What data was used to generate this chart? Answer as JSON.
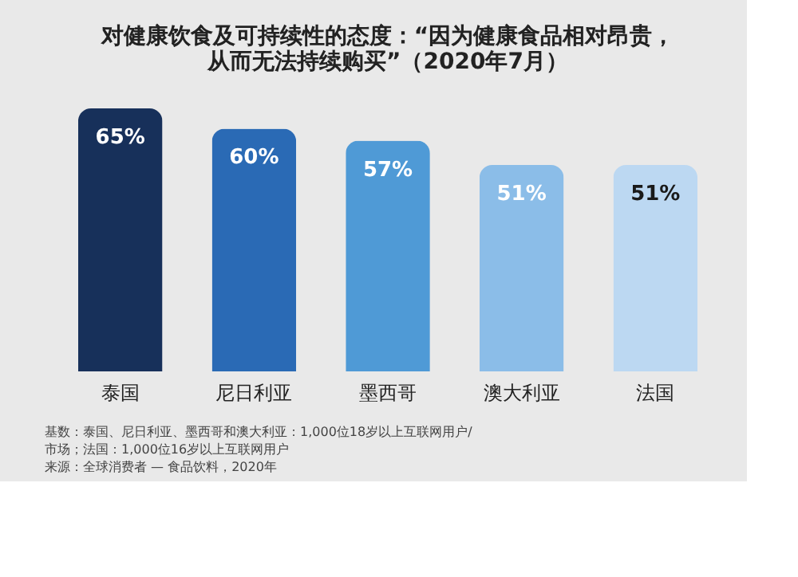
{
  "chart_data": {
    "type": "bar",
    "title": "对健康饮食及可持续性的态度：“因为健康食品相对昂贵，从而无法持续购买”（2020年7月）",
    "categories": [
      "泰国",
      "尼日利亚",
      "墨西哥",
      "澳大利亚",
      "法国"
    ],
    "values": [
      65,
      60,
      57,
      51,
      51
    ],
    "colors": [
      "#17305a",
      "#2a6ab5",
      "#4f9ad6",
      "#8bbde8",
      "#bcd8f2"
    ],
    "value_labels": [
      "65%",
      "60%",
      "57%",
      "51%",
      "51%"
    ],
    "annotations": [
      "基数：泰国、尼日利亚、墨西哥和澳大利亚：1,000位18岁以上互联网用户/",
      "市场；法国：1,000位16岁以上互联网用户",
      "来源：全球消费者 — 食品饮料，2020年"
    ],
    "grid": false
  }
}
